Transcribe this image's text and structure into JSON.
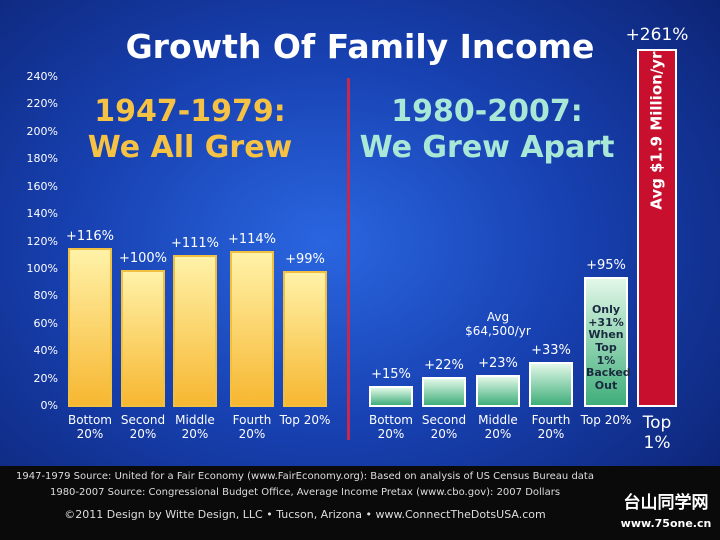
{
  "chart_data": {
    "type": "bar",
    "title": "Growth Of Family Income",
    "ylim": [
      0,
      240
    ],
    "yticks": [
      {
        "value": 0,
        "label": "0%"
      },
      {
        "value": 20,
        "label": "20%"
      },
      {
        "value": 40,
        "label": "40%"
      },
      {
        "value": 60,
        "label": "60%"
      },
      {
        "value": 80,
        "label": "80%"
      },
      {
        "value": 100,
        "label": "100%"
      },
      {
        "value": 120,
        "label": "120%"
      },
      {
        "value": 140,
        "label": "140%"
      },
      {
        "value": 160,
        "label": "160%"
      },
      {
        "value": 180,
        "label": "180%"
      },
      {
        "value": 200,
        "label": "200%"
      },
      {
        "value": 220,
        "label": "220%"
      },
      {
        "value": 240,
        "label": "240%"
      }
    ],
    "series": [
      {
        "name": "1947-1979:",
        "subtitle": "We All Grew",
        "color": "#f7b731",
        "categories": [
          "Bottom 20%",
          "Second 20%",
          "Middle 20%",
          "Fourth 20%",
          "Top 20%"
        ],
        "values": [
          116,
          100,
          111,
          114,
          99
        ],
        "value_labels": [
          "+116%",
          "+100%",
          "+111%",
          "+114%",
          "+99%"
        ]
      },
      {
        "name": "1980-2007:",
        "subtitle": "We Grew Apart",
        "color": "#3fae7a",
        "top_color": "#c8102e",
        "categories": [
          "Bottom 20%",
          "Second 20%",
          "Middle 20%",
          "Fourth 20%",
          "Top 20%",
          "Top 1%"
        ],
        "values": [
          15,
          22,
          23,
          33,
          95,
          261
        ],
        "value_labels": [
          "+15%",
          "+22%",
          "+23%",
          "+33%",
          "+95%",
          "+261%"
        ]
      }
    ],
    "annotations": [
      "Avg $64,500/yr",
      "Only +31% When Top 1% Backed Out",
      "Avg $1.9 Million/yr"
    ],
    "footer": [
      "1947-1979 Source: United for a Fair Economy (www.FairEconomy.org): Based on analysis of US Census Bureau data",
      "1980-2007 Source: Congressional Budget Office, Average Income Pretax (www.cbo.gov): 2007 Dollars",
      "©2011 Design by Witte Design, LLC • Tucson, Arizona • www.ConnectTheDotsUSA.com"
    ],
    "watermark": [
      "台山同学网",
      "www.75one.cn"
    ]
  }
}
